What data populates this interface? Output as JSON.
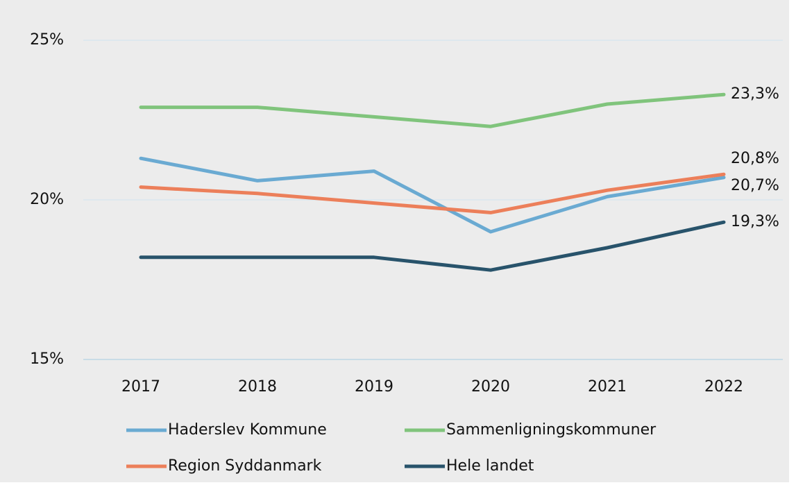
{
  "chart_data": {
    "type": "line",
    "categories": [
      "2017",
      "2018",
      "2019",
      "2020",
      "2021",
      "2022"
    ],
    "series": [
      {
        "name": "Haderslev Kommune",
        "color": "#6aaad2",
        "values": [
          21.3,
          20.6,
          20.9,
          19.0,
          20.1,
          20.7
        ],
        "value_labels": [
          null,
          null,
          null,
          null,
          null,
          "20,7%"
        ]
      },
      {
        "name": "Sammenligningskommuner",
        "color": "#80c47c",
        "values": [
          22.9,
          22.9,
          22.6,
          22.3,
          23.0,
          23.3
        ],
        "value_labels": [
          null,
          null,
          null,
          null,
          null,
          "23,3%"
        ]
      },
      {
        "name": "Region Syddanmark",
        "color": "#ec7f5a",
        "values": [
          20.4,
          20.2,
          19.9,
          19.6,
          20.3,
          20.8
        ],
        "value_labels": [
          null,
          null,
          null,
          null,
          null,
          "20,8%"
        ]
      },
      {
        "name": "Hele landet",
        "color": "#28536b",
        "values": [
          18.2,
          18.2,
          18.2,
          17.8,
          18.5,
          19.3
        ],
        "value_labels": [
          null,
          null,
          null,
          null,
          null,
          "19,3%"
        ]
      }
    ],
    "ylim": [
      15,
      25
    ],
    "yticks": [
      {
        "value": 15,
        "label": "15%"
      },
      {
        "value": 20,
        "label": "20%"
      },
      {
        "value": 25,
        "label": "25%"
      }
    ],
    "grid": true
  }
}
